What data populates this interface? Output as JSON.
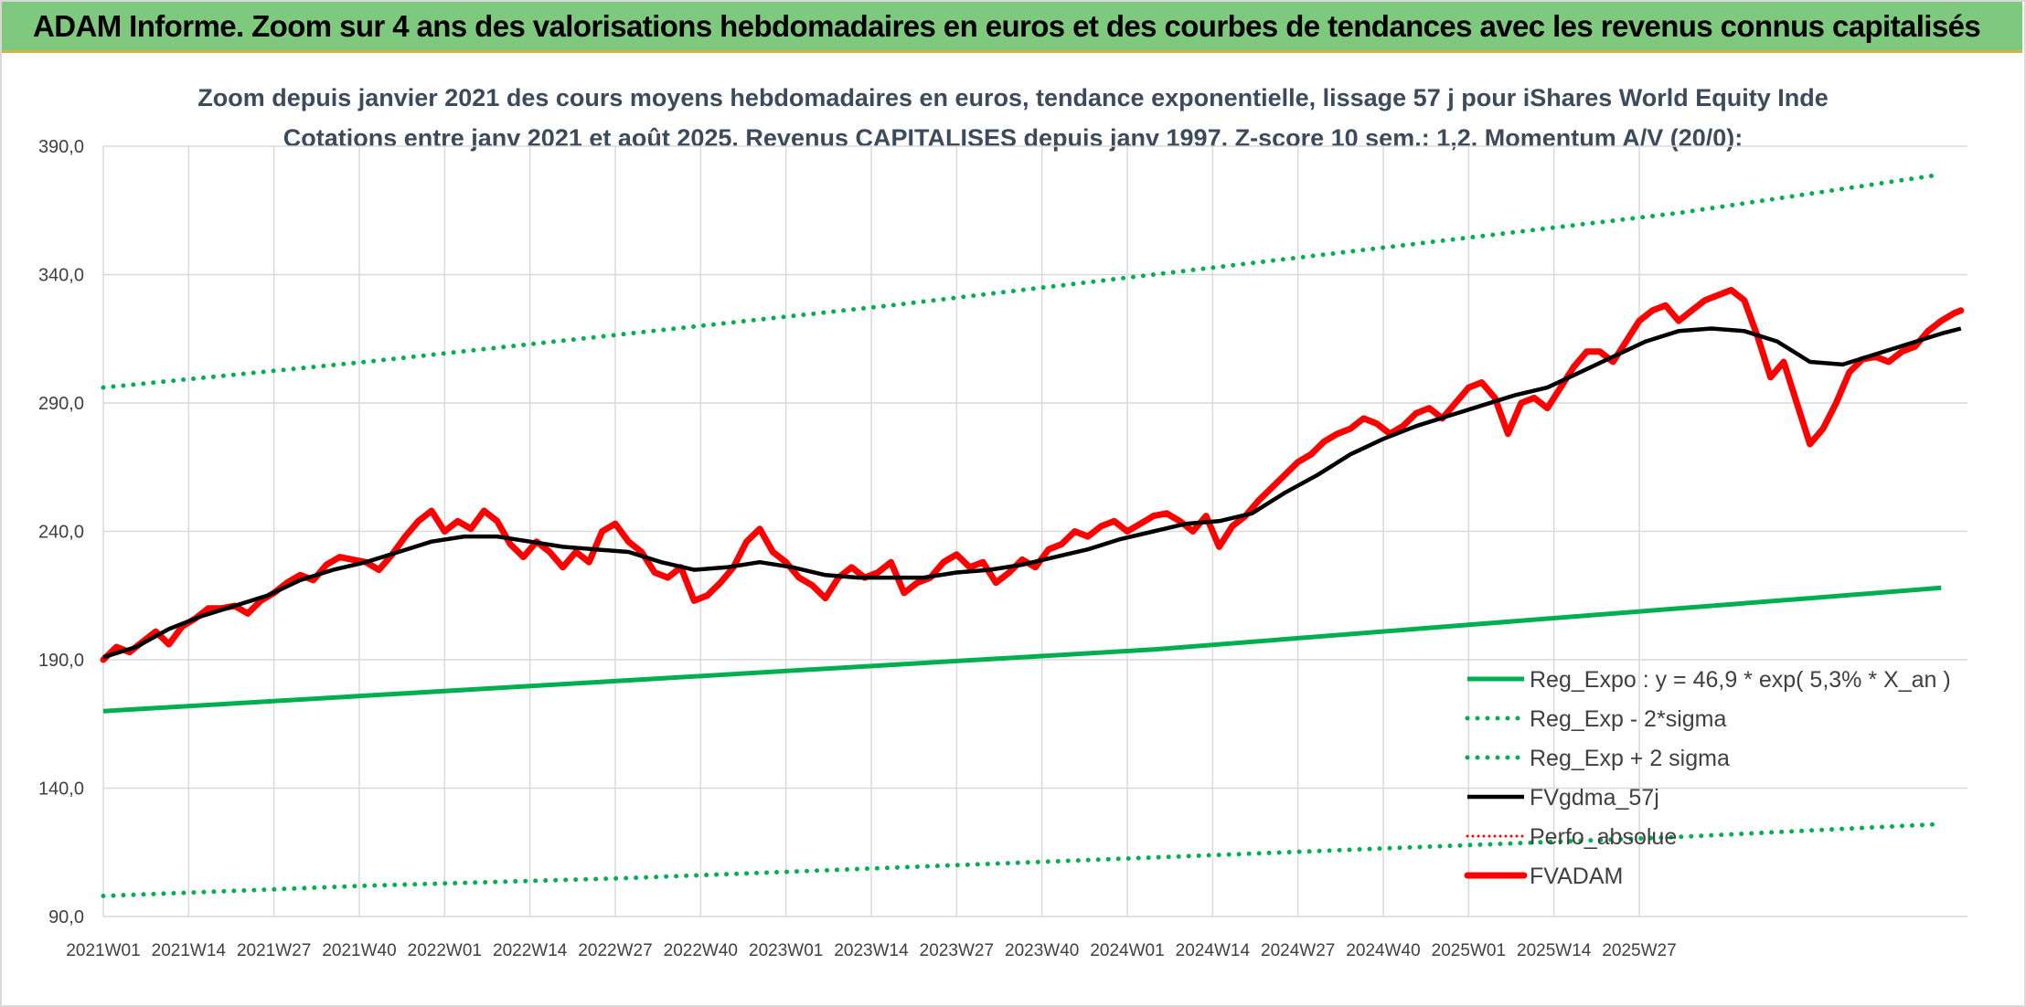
{
  "banner": {
    "title": "ADAM Informe. Zoom sur 4 ans des valorisations hebdomadaires en euros et des courbes de tendances avec les revenus connus capitalisés"
  },
  "chart_data": {
    "type": "line",
    "title_lines": [
      "Zoom depuis janvier 2021 des cours moyens hebdomadaires en euros, tendance exponentielle, lissage 57 j pour iShares World Equity Inde",
      "Cotations entre janv 2021 et août 2025. Revenus CAPITALISES depuis janv 1997. Z-score 10 sem.: 1,2. Momentum A/V (20/0):"
    ],
    "xlabel": "",
    "ylabel": "",
    "ylim": [
      90,
      390
    ],
    "y_ticks": [
      "390,0",
      "340,0",
      "290,0",
      "240,0",
      "190,0",
      "140,0",
      "90,0"
    ],
    "x_ticks": [
      "2021W01",
      "2021W14",
      "2021W27",
      "2021W40",
      "2022W01",
      "2022W14",
      "2022W27",
      "2022W40",
      "2023W01",
      "2023W14",
      "2023W27",
      "2023W40",
      "2024W01",
      "2024W14",
      "2024W27",
      "2024W40",
      "2025W01",
      "2025W14",
      "2025W27"
    ],
    "grid": true,
    "legend_position": "bottom-right",
    "colors": {
      "green": "#00b050",
      "black": "#000000",
      "red": "#ff0000"
    },
    "x_unit": "weeks since 2021W01",
    "series": [
      {
        "name": "Reg_Expo : y = 46,9 * exp( 5,3% *  X_an )",
        "style": "solid-green",
        "points": [
          [
            0,
            170
          ],
          [
            20,
            173
          ],
          [
            40,
            176
          ],
          [
            60,
            179
          ],
          [
            80,
            182
          ],
          [
            100,
            185
          ],
          [
            120,
            188
          ],
          [
            140,
            191
          ],
          [
            160,
            194
          ],
          [
            180,
            198
          ],
          [
            200,
            202
          ],
          [
            220,
            206
          ],
          [
            240,
            210
          ],
          [
            260,
            214
          ],
          [
            280,
            218
          ]
        ]
      },
      {
        "name": "Reg_Exp - 2*sigma",
        "style": "dotted-green",
        "points": [
          [
            0,
            98
          ],
          [
            40,
            102
          ],
          [
            80,
            105
          ],
          [
            120,
            109
          ],
          [
            160,
            113
          ],
          [
            200,
            117
          ],
          [
            240,
            121
          ],
          [
            280,
            126
          ]
        ]
      },
      {
        "name": "Reg_Exp + 2 sigma",
        "style": "dotted-green",
        "points": [
          [
            0,
            296
          ],
          [
            40,
            306
          ],
          [
            80,
            317
          ],
          [
            120,
            328
          ],
          [
            160,
            340
          ],
          [
            200,
            352
          ],
          [
            240,
            364
          ],
          [
            280,
            379
          ]
        ]
      },
      {
        "name": "FVgdma_57j",
        "style": "solid-black",
        "points": [
          [
            0,
            191
          ],
          [
            5,
            195
          ],
          [
            10,
            202
          ],
          [
            15,
            207
          ],
          [
            20,
            211
          ],
          [
            25,
            215
          ],
          [
            30,
            221
          ],
          [
            35,
            225
          ],
          [
            40,
            228
          ],
          [
            45,
            232
          ],
          [
            50,
            236
          ],
          [
            55,
            238
          ],
          [
            60,
            238
          ],
          [
            65,
            236
          ],
          [
            70,
            234
          ],
          [
            75,
            233
          ],
          [
            80,
            232
          ],
          [
            85,
            228
          ],
          [
            90,
            225
          ],
          [
            95,
            226
          ],
          [
            100,
            228
          ],
          [
            105,
            226
          ],
          [
            110,
            223
          ],
          [
            115,
            222
          ],
          [
            120,
            222
          ],
          [
            125,
            222
          ],
          [
            130,
            224
          ],
          [
            135,
            225
          ],
          [
            140,
            227
          ],
          [
            145,
            230
          ],
          [
            150,
            233
          ],
          [
            155,
            237
          ],
          [
            160,
            240
          ],
          [
            165,
            243
          ],
          [
            170,
            244
          ],
          [
            175,
            247
          ],
          [
            180,
            255
          ],
          [
            185,
            262
          ],
          [
            190,
            270
          ],
          [
            195,
            276
          ],
          [
            200,
            281
          ],
          [
            205,
            285
          ],
          [
            210,
            289
          ],
          [
            215,
            293
          ],
          [
            220,
            296
          ],
          [
            225,
            302
          ],
          [
            230,
            308
          ],
          [
            235,
            314
          ],
          [
            240,
            318
          ],
          [
            245,
            319
          ],
          [
            250,
            318
          ],
          [
            255,
            314
          ],
          [
            260,
            306
          ],
          [
            265,
            305
          ],
          [
            270,
            309
          ],
          [
            275,
            313
          ],
          [
            280,
            317
          ],
          [
            283,
            319
          ]
        ]
      },
      {
        "name": "Perfo_absolue",
        "style": "dotted-red",
        "points": []
      },
      {
        "name": "FVADAM",
        "style": "solid-red",
        "points": [
          [
            0,
            190
          ],
          [
            2,
            195
          ],
          [
            4,
            193
          ],
          [
            6,
            197
          ],
          [
            8,
            201
          ],
          [
            10,
            196
          ],
          [
            12,
            203
          ],
          [
            14,
            206
          ],
          [
            16,
            210
          ],
          [
            18,
            210
          ],
          [
            20,
            211
          ],
          [
            22,
            208
          ],
          [
            24,
            213
          ],
          [
            26,
            216
          ],
          [
            28,
            220
          ],
          [
            30,
            223
          ],
          [
            32,
            221
          ],
          [
            34,
            227
          ],
          [
            36,
            230
          ],
          [
            38,
            229
          ],
          [
            40,
            228
          ],
          [
            42,
            225
          ],
          [
            44,
            231
          ],
          [
            46,
            238
          ],
          [
            48,
            244
          ],
          [
            50,
            248
          ],
          [
            52,
            240
          ],
          [
            54,
            244
          ],
          [
            56,
            241
          ],
          [
            58,
            248
          ],
          [
            60,
            244
          ],
          [
            62,
            235
          ],
          [
            64,
            230
          ],
          [
            66,
            236
          ],
          [
            68,
            232
          ],
          [
            70,
            226
          ],
          [
            72,
            232
          ],
          [
            74,
            228
          ],
          [
            76,
            240
          ],
          [
            78,
            243
          ],
          [
            80,
            236
          ],
          [
            82,
            232
          ],
          [
            84,
            224
          ],
          [
            86,
            222
          ],
          [
            88,
            226
          ],
          [
            90,
            213
          ],
          [
            92,
            215
          ],
          [
            94,
            220
          ],
          [
            96,
            226
          ],
          [
            98,
            236
          ],
          [
            100,
            241
          ],
          [
            102,
            232
          ],
          [
            104,
            228
          ],
          [
            106,
            222
          ],
          [
            108,
            219
          ],
          [
            110,
            214
          ],
          [
            112,
            222
          ],
          [
            114,
            226
          ],
          [
            116,
            222
          ],
          [
            118,
            224
          ],
          [
            120,
            228
          ],
          [
            122,
            216
          ],
          [
            124,
            220
          ],
          [
            126,
            222
          ],
          [
            128,
            228
          ],
          [
            130,
            231
          ],
          [
            132,
            226
          ],
          [
            134,
            228
          ],
          [
            136,
            220
          ],
          [
            138,
            224
          ],
          [
            140,
            229
          ],
          [
            142,
            226
          ],
          [
            144,
            233
          ],
          [
            146,
            235
          ],
          [
            148,
            240
          ],
          [
            150,
            238
          ],
          [
            152,
            242
          ],
          [
            154,
            244
          ],
          [
            156,
            240
          ],
          [
            158,
            243
          ],
          [
            160,
            246
          ],
          [
            162,
            247
          ],
          [
            164,
            244
          ],
          [
            166,
            240
          ],
          [
            168,
            246
          ],
          [
            170,
            234
          ],
          [
            172,
            242
          ],
          [
            174,
            246
          ],
          [
            176,
            252
          ],
          [
            178,
            257
          ],
          [
            180,
            262
          ],
          [
            182,
            267
          ],
          [
            184,
            270
          ],
          [
            186,
            275
          ],
          [
            188,
            278
          ],
          [
            190,
            280
          ],
          [
            192,
            284
          ],
          [
            194,
            282
          ],
          [
            196,
            278
          ],
          [
            198,
            281
          ],
          [
            200,
            286
          ],
          [
            202,
            288
          ],
          [
            204,
            284
          ],
          [
            206,
            290
          ],
          [
            208,
            296
          ],
          [
            210,
            298
          ],
          [
            212,
            292
          ],
          [
            214,
            278
          ],
          [
            216,
            290
          ],
          [
            218,
            292
          ],
          [
            220,
            288
          ],
          [
            222,
            296
          ],
          [
            224,
            304
          ],
          [
            226,
            310
          ],
          [
            228,
            310
          ],
          [
            230,
            306
          ],
          [
            232,
            314
          ],
          [
            234,
            322
          ],
          [
            236,
            326
          ],
          [
            238,
            328
          ],
          [
            240,
            322
          ],
          [
            242,
            326
          ],
          [
            244,
            330
          ],
          [
            246,
            332
          ],
          [
            248,
            334
          ],
          [
            250,
            330
          ],
          [
            252,
            316
          ],
          [
            254,
            300
          ],
          [
            256,
            306
          ],
          [
            258,
            290
          ],
          [
            260,
            274
          ],
          [
            262,
            280
          ],
          [
            264,
            290
          ],
          [
            266,
            302
          ],
          [
            268,
            307
          ],
          [
            270,
            308
          ],
          [
            272,
            306
          ],
          [
            274,
            310
          ],
          [
            276,
            312
          ],
          [
            278,
            318
          ],
          [
            280,
            322
          ],
          [
            282,
            325
          ],
          [
            283,
            326
          ]
        ]
      }
    ]
  }
}
